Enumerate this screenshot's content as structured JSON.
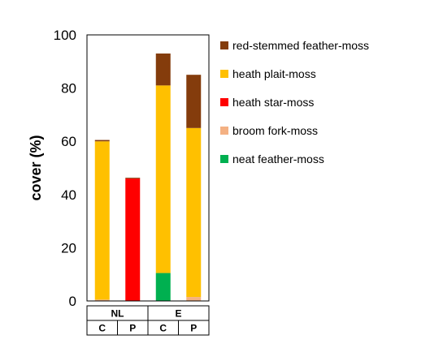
{
  "chart_data": {
    "type": "bar",
    "stacked": true,
    "title": "",
    "xlabel": "",
    "ylabel": "cover (%)",
    "ylim": [
      0,
      100
    ],
    "yticks": [
      0,
      20,
      40,
      60,
      80,
      100
    ],
    "grid": false,
    "legend_position": "right",
    "categories": [
      "C",
      "P",
      "C",
      "P"
    ],
    "groups": [
      {
        "label": "NL",
        "categories": [
          "C",
          "P"
        ]
      },
      {
        "label": "E",
        "categories": [
          "C",
          "P"
        ]
      }
    ],
    "series": [
      {
        "name": "neat feather-moss",
        "color": "#00b050",
        "values": [
          0,
          0,
          10.5,
          0
        ]
      },
      {
        "name": "broom fork-moss",
        "color": "#f4b183",
        "values": [
          0.5,
          0,
          0,
          1.5
        ]
      },
      {
        "name": "heath star-moss",
        "color": "#ff0000",
        "values": [
          0,
          46,
          0,
          0
        ]
      },
      {
        "name": "heath plait-moss",
        "color": "#ffc000",
        "values": [
          59.5,
          0,
          70.5,
          63.5
        ]
      },
      {
        "name": "red-stemmed feather-moss",
        "color": "#843c0c",
        "values": [
          0.5,
          0.3,
          12,
          20
        ]
      }
    ],
    "legend_order": [
      "red-stemmed feather-moss",
      "heath plait-moss",
      "heath star-moss",
      "broom fork-moss",
      "neat feather-moss"
    ]
  }
}
